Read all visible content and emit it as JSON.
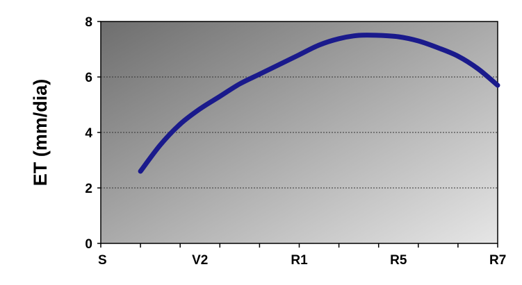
{
  "chart_data": {
    "type": "line",
    "title": "",
    "xlabel": "",
    "ylabel": "ET (mm/dia)",
    "ylim": [
      0,
      8
    ],
    "y_ticks": [
      "0",
      "2",
      "4",
      "6",
      "8"
    ],
    "x_categories": [
      "S",
      "V2",
      "R1",
      "R5",
      "R7"
    ],
    "x_minor_ticks": 10,
    "grid": "horizontal dotted",
    "legend": "none",
    "series": [
      {
        "color": "#1a1a8c",
        "x": [
          1.0,
          1.5,
          2.0,
          2.5,
          3.0,
          3.5,
          4.0,
          4.5,
          5.0,
          5.5,
          6.0,
          6.5,
          7.0,
          7.5,
          8.0,
          8.5,
          9.0,
          9.5,
          10.0
        ],
        "y": [
          2.6,
          3.55,
          4.3,
          4.85,
          5.3,
          5.75,
          6.1,
          6.45,
          6.8,
          7.15,
          7.38,
          7.5,
          7.5,
          7.45,
          7.3,
          7.05,
          6.75,
          6.3,
          5.7
        ]
      }
    ]
  },
  "colors": {
    "plot_bg_dark": "#6e6e6e",
    "plot_bg_light": "#e6e6e6",
    "line": "#1a1a8c"
  }
}
